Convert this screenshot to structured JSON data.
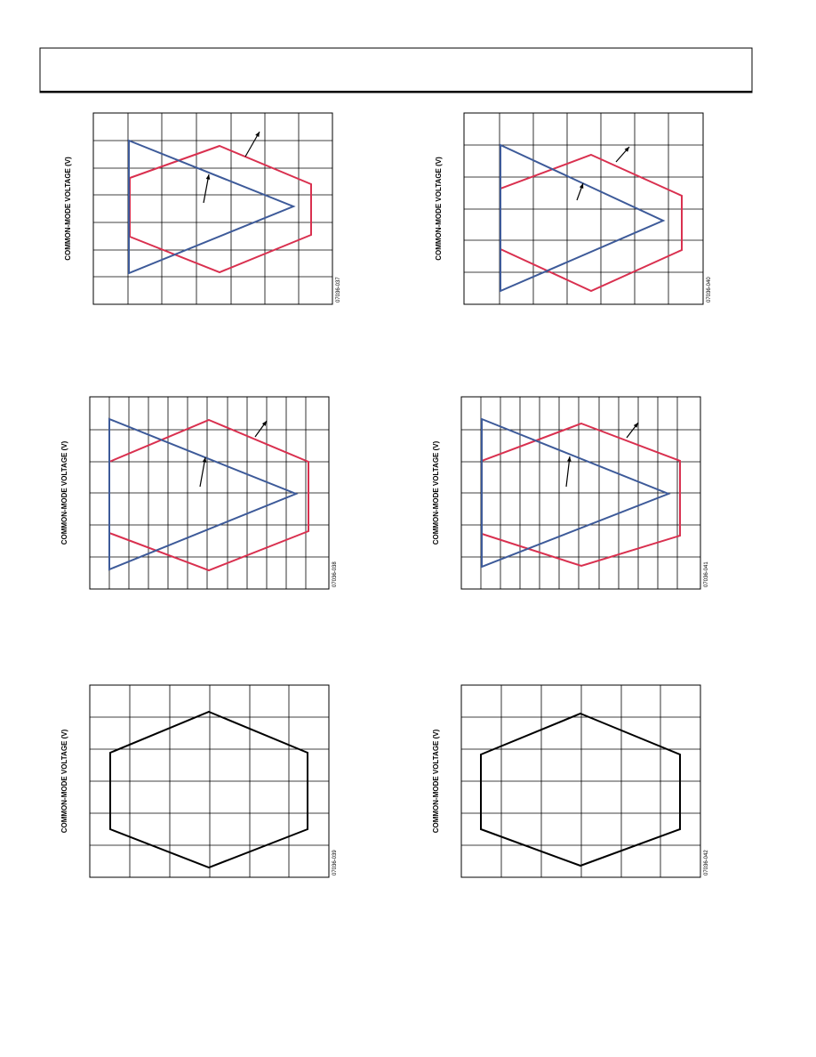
{
  "plots": [
    {
      "y_label": "COMMON-MODE VOLTAGE (V)",
      "figure_id": "07036-037"
    },
    {
      "y_label": "COMMON-MODE VOLTAGE (V)",
      "figure_id": "07036-040"
    },
    {
      "y_label": "COMMON-MODE VOLTAGE (V)",
      "figure_id": "07036-038"
    },
    {
      "y_label": "COMMON-MODE VOLTAGE (V)",
      "figure_id": "07036-041"
    },
    {
      "y_label": "COMMON-MODE VOLTAGE (V)",
      "figure_id": "07036-039"
    },
    {
      "y_label": "COMMON-MODE VOLTAGE (V)",
      "figure_id": "07036-042"
    }
  ]
}
